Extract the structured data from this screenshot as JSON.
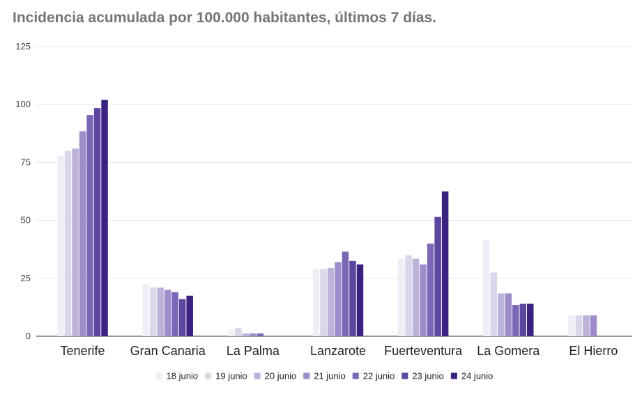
{
  "chart_data": {
    "type": "bar",
    "title": "Incidencia acumulada por 100.000 habitantes, últimos 7 días.",
    "categories": [
      "Tenerife",
      "Gran Canaria",
      "La Palma",
      "Lanzarote",
      "Fuerteventura",
      "La Gomera",
      "El Hierro"
    ],
    "ylim": [
      0,
      125
    ],
    "yticks": [
      0,
      25,
      50,
      75,
      100,
      125
    ],
    "grid": true,
    "legend_position": "bottom",
    "series": [
      {
        "name": "18 junio",
        "color": "#efedf5",
        "values": [
          78,
          22.5,
          2.5,
          29,
          33.5,
          41.5,
          9
        ]
      },
      {
        "name": "19 junio",
        "color": "#dcd6ea",
        "values": [
          80,
          21,
          3.5,
          29,
          35,
          27.5,
          9
        ]
      },
      {
        "name": "20 junio",
        "color": "#bcb2da",
        "values": [
          81,
          21,
          1.2,
          29.5,
          33.5,
          18.5,
          9
        ]
      },
      {
        "name": "21 junio",
        "color": "#9e8ccb",
        "values": [
          88.5,
          20,
          1.2,
          32,
          31,
          18.5,
          9
        ]
      },
      {
        "name": "22 junio",
        "color": "#7c67b6",
        "values": [
          95.5,
          19,
          1.2,
          36.5,
          40,
          13.5,
          0
        ]
      },
      {
        "name": "23 junio",
        "color": "#5c46a0",
        "values": [
          98.5,
          16,
          0,
          32.5,
          51.5,
          14,
          0
        ]
      },
      {
        "name": "24 junio",
        "color": "#3c2280",
        "values": [
          102,
          17.5,
          0,
          31,
          62.5,
          14,
          0
        ]
      }
    ]
  }
}
